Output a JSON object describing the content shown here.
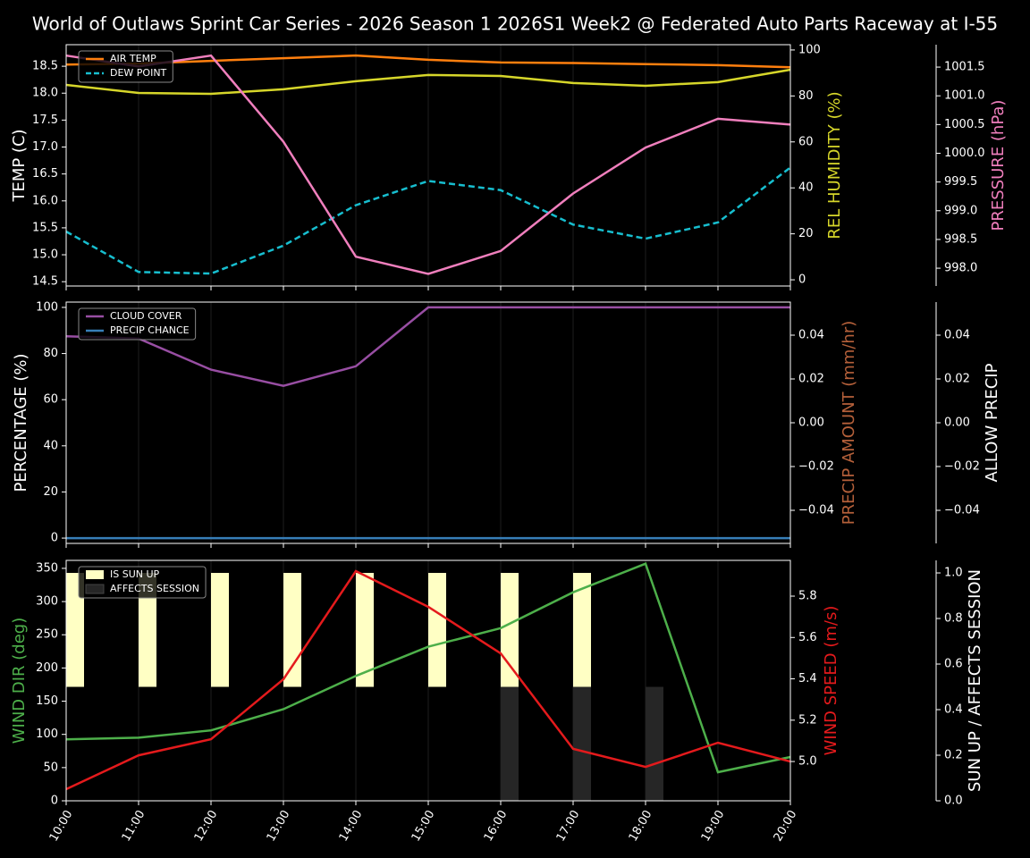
{
  "chart_data": [
    {
      "type": "line",
      "title": "World of Outlaws Sprint Car Series - 2026 Season 1 2026S1 Week2 @ Federated Auto Parts Raceway at I-55",
      "ylabel": "TEMP (C)",
      "ycolor": "#ffffff",
      "y2label": "REL HUMIDITY (%)",
      "y2color": "#d6d62a",
      "y3label": "PRESSURE (hPa)",
      "y3color": "#f07fbd",
      "ylim": [
        14.42,
        18.9
      ],
      "yticks": [
        14.5,
        {
          "value": 15,
          "label": "15.0"
        },
        15.5,
        {
          "value": 16,
          "label": "16.0"
        },
        16.5,
        {
          "value": 17,
          "label": "17.0"
        },
        17.5,
        {
          "value": 18,
          "label": "18.0"
        },
        18.5
      ],
      "y2lim": [
        -2.7,
        102.3
      ],
      "y2ticks": [
        0,
        20,
        40,
        60,
        80,
        100
      ],
      "y3lim": [
        997.69,
        1001.89
      ],
      "y3ticks": [
        {
          "value": 998,
          "label": "998.0"
        },
        998.5,
        {
          "value": 999,
          "label": "999.0"
        },
        999.5,
        {
          "value": 1000,
          "label": "1000.0"
        },
        1000.5,
        {
          "value": 1001,
          "label": "1001.0"
        },
        1001.5
      ],
      "grid": true,
      "legend": "upper left",
      "series": [
        {
          "name": "AIR TEMP",
          "color": "#ff7f0e",
          "axis": "y",
          "values": [
            18.53,
            18.55,
            18.6,
            18.65,
            18.7,
            18.62,
            18.57,
            18.56,
            18.54,
            18.52,
            18.48
          ]
        },
        {
          "name": "DEW POINT",
          "color": "#17becf",
          "axis": "y",
          "linestyle": "dashed",
          "values": [
            15.43,
            14.68,
            14.65,
            15.17,
            15.92,
            16.37,
            16.2,
            15.56,
            15.3,
            15.6,
            16.62
          ]
        },
        {
          "color": "#d6d62a",
          "axis": "y2",
          "values": [
            84.8,
            81.3,
            80.9,
            82.9,
            86.4,
            89.1,
            88.7,
            85.6,
            84.4,
            86,
            91.4
          ]
        },
        {
          "color": "#f07fbd",
          "axis": "y3",
          "values": [
            1001.7,
            1001.51,
            1001.7,
            1000.2,
            998.2,
            997.9,
            998.3,
            999.3,
            1000.1,
            1000.6,
            1000.5
          ]
        }
      ]
    },
    {
      "type": "line",
      "ylabel": "PERCENTAGE (%)",
      "ycolor": "#ffffff",
      "y2label": "PRECIP AMOUNT (mm/hr)",
      "y2color": "#b5603a",
      "y3label": "ALLOW PRECIP",
      "y3color": "#ffffff",
      "ylim": [
        -2.3,
        102.3
      ],
      "yticks": [
        0,
        20,
        40,
        60,
        80,
        100
      ],
      "y2lim": [
        -0.0551,
        0.0551
      ],
      "y2ticks": [
        {
          "value": -0.04,
          "label": "−0.04"
        },
        {
          "value": -0.02,
          "label": "−0.02"
        },
        {
          "value": 0,
          "label": "0.00"
        },
        0.02,
        0.04
      ],
      "y3lim": [
        -0.0551,
        0.0551
      ],
      "y3ticks": [
        {
          "value": -0.04,
          "label": "−0.04"
        },
        {
          "value": -0.02,
          "label": "−0.02"
        },
        {
          "value": 0,
          "label": "0.00"
        },
        0.02,
        0.04
      ],
      "grid": true,
      "legend": "upper left",
      "series": [
        {
          "name": "CLOUD COVER",
          "color": "#984ea3",
          "axis": "y",
          "values": [
            87.5,
            86.5,
            73,
            66,
            74.5,
            100,
            100,
            100,
            100,
            100,
            100
          ]
        },
        {
          "name": "PRECIP CHANCE",
          "color": "#377eb8",
          "axis": "y",
          "values": [
            0,
            0,
            0,
            0,
            0,
            0,
            0,
            0,
            0,
            0,
            0
          ]
        }
      ]
    },
    {
      "type": "line",
      "ylabel": "WIND DIR (deg)",
      "ycolor": "#4daf4a",
      "y2label": "WIND SPEED (m/s)",
      "y2color": "#e41a1c",
      "y3label": "SUN UP / AFFECTS SESSION",
      "y3color": "#ffffff",
      "categories": [
        "10:00",
        "11:00",
        "12:00",
        "13:00",
        "14:00",
        "15:00",
        "16:00",
        "17:00",
        "18:00",
        "19:00",
        "20:00"
      ],
      "ylim": [
        0,
        362
      ],
      "yticks": [
        0,
        50,
        100,
        150,
        200,
        250,
        300,
        350
      ],
      "y2lim": [
        4.81,
        5.973
      ],
      "y2ticks": [
        {
          "value": 5,
          "label": "5.0"
        },
        5.2,
        5.4,
        5.6,
        5.8
      ],
      "y3lim": [
        0,
        1.055
      ],
      "y3ticks": [
        {
          "value": 0,
          "label": "0.0"
        },
        0.2,
        0.4,
        0.6,
        0.8,
        {
          "value": 1,
          "label": "1.0"
        }
      ],
      "grid": true,
      "legend": "upper left",
      "series": [
        {
          "name": "IS SUN UP",
          "type": "bar",
          "color": "#ffffc4",
          "axis": "y3",
          "values": [
            1,
            1,
            1,
            1,
            1,
            1,
            1,
            1,
            0,
            0,
            0
          ]
        },
        {
          "name": "AFFECTS SESSION",
          "type": "bar",
          "color": "#262626",
          "axis": "y3",
          "values": [
            0,
            0,
            0,
            0,
            0,
            0,
            0.5,
            0.5,
            0.5,
            0,
            0
          ]
        },
        {
          "color": "#4daf4a",
          "axis": "y",
          "values": [
            92.5,
            95,
            106,
            138,
            188,
            232,
            260,
            314,
            357,
            43,
            66
          ]
        },
        {
          "color": "#e41a1c",
          "axis": "y2",
          "values": [
            4.866,
            5.03,
            5.108,
            5.398,
            5.921,
            5.748,
            5.523,
            5.061,
            4.974,
            5.091,
            5
          ]
        }
      ]
    }
  ]
}
